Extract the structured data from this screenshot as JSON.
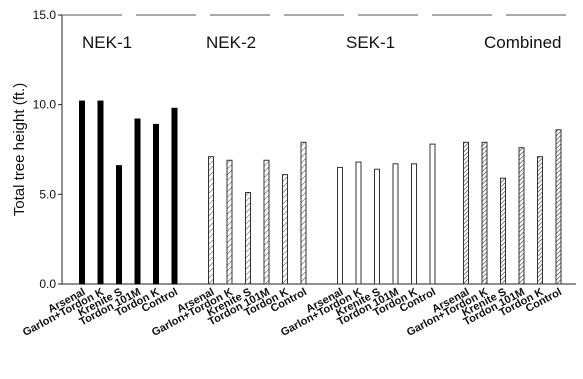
{
  "chart_data": {
    "type": "bar",
    "ylabel": "Total tree height (ft.)",
    "ylim": [
      0,
      15
    ],
    "yticks": [
      {
        "value": 0,
        "label": "0.0"
      },
      {
        "value": 5,
        "label": "5.0"
      },
      {
        "value": 10,
        "label": "10.0"
      },
      {
        "value": 15,
        "label": "15.0"
      }
    ],
    "categories": [
      "Arsenal",
      "Garlon+Tordon K",
      "Krenite S",
      "Tordon 101M",
      "Tordon K",
      "Control"
    ],
    "panels": [
      {
        "name": "NEK-1",
        "style": "solid",
        "values": [
          10.2,
          10.2,
          6.6,
          9.2,
          8.9,
          9.8
        ]
      },
      {
        "name": "NEK-2",
        "style": "hatch",
        "values": [
          7.1,
          6.9,
          5.1,
          6.9,
          6.1,
          7.9
        ]
      },
      {
        "name": "SEK-1",
        "style": "open",
        "values": [
          6.5,
          6.8,
          6.4,
          6.7,
          6.7,
          7.8
        ]
      },
      {
        "name": "Combined",
        "style": "crosshatch",
        "values": [
          7.9,
          7.9,
          5.9,
          7.6,
          7.1,
          8.6
        ]
      }
    ],
    "grid": false
  }
}
